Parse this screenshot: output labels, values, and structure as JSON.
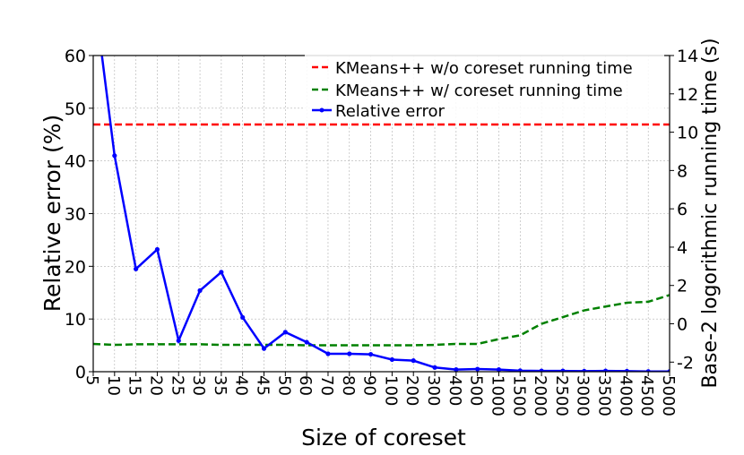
{
  "chart_data": {
    "type": "line",
    "xlabel": "Size of coreset",
    "ylabel_left": "Relative error (%)",
    "ylabel_right": "Base-2 logorithmic running time (s)",
    "categories": [
      "5",
      "10",
      "15",
      "20",
      "25",
      "30",
      "35",
      "40",
      "45",
      "50",
      "60",
      "70",
      "80",
      "90",
      "100",
      "200",
      "300",
      "400",
      "500",
      "1000",
      "1500",
      "2000",
      "2500",
      "3000",
      "3500",
      "4000",
      "4500",
      "5000"
    ],
    "ylim_left": [
      0,
      60
    ],
    "yticks_left": [
      "0",
      "10",
      "20",
      "30",
      "40",
      "50",
      "60"
    ],
    "ylim_right": [
      -2.5,
      14
    ],
    "yticks_right": [
      "-2",
      "0",
      "2",
      "4",
      "6",
      "8",
      "10",
      "12",
      "14"
    ],
    "grid": true,
    "legend_position": "top-right",
    "series": [
      {
        "name": "KMeans++ w/o coreset running time",
        "axis": "right",
        "color": "#ff0000",
        "style": "dashed",
        "values": [
          10.4,
          10.4,
          10.4,
          10.4,
          10.4,
          10.4,
          10.4,
          10.4,
          10.4,
          10.4,
          10.4,
          10.4,
          10.4,
          10.4,
          10.4,
          10.4,
          10.4,
          10.4,
          10.4,
          10.4,
          10.4,
          10.4,
          10.4,
          10.4,
          10.4,
          10.4,
          10.4,
          10.4
        ]
      },
      {
        "name": "KMeans++ w/ coreset running time",
        "axis": "right",
        "color": "#008000",
        "style": "dashed",
        "values": [
          -1.05,
          -1.1,
          -1.07,
          -1.07,
          -1.07,
          -1.07,
          -1.1,
          -1.1,
          -1.1,
          -1.1,
          -1.12,
          -1.12,
          -1.12,
          -1.12,
          -1.12,
          -1.12,
          -1.1,
          -1.05,
          -1.05,
          -0.8,
          -0.6,
          0.0,
          0.35,
          0.7,
          0.9,
          1.1,
          1.15,
          1.5
        ]
      },
      {
        "name": "Relative error",
        "axis": "left",
        "color": "#0000ff",
        "style": "solid-marker",
        "values": [
          73,
          41,
          19.5,
          23.2,
          5.9,
          15.4,
          18.9,
          10.3,
          4.4,
          7.5,
          5.6,
          3.4,
          3.4,
          3.3,
          2.3,
          2.1,
          0.8,
          0.4,
          0.5,
          0.4,
          0.2,
          0.15,
          0.15,
          0.1,
          0.15,
          0.1,
          0.05,
          0.05
        ]
      }
    ]
  }
}
